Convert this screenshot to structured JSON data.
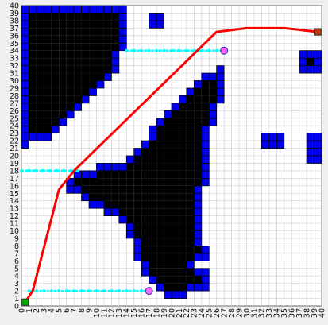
{
  "chart_data": {
    "type": "scatter",
    "title": "",
    "xlabel": "",
    "ylabel": "",
    "xlim": [
      0,
      40
    ],
    "ylim": [
      0,
      40
    ],
    "grid": true,
    "x_tick_labels": [
      "0",
      "1",
      "2",
      "3",
      "4",
      "5",
      "6",
      "7",
      "8",
      "9",
      "10",
      "11",
      "12",
      "13",
      "14",
      "15",
      "16",
      "17",
      "18",
      "19",
      "20",
      "21",
      "22",
      "23",
      "24",
      "25",
      "26",
      "27",
      "28",
      "29",
      "30",
      "31",
      "32",
      "33",
      "34",
      "35",
      "36",
      "37",
      "38",
      "39",
      "40"
    ],
    "y_tick_labels": [
      "0",
      "1",
      "2",
      "3",
      "4",
      "5",
      "6",
      "7",
      "8",
      "9",
      "10",
      "11",
      "12",
      "13",
      "14",
      "15",
      "16",
      "17",
      "18",
      "19",
      "20",
      "21",
      "22",
      "23",
      "24",
      "25",
      "26",
      "27",
      "28",
      "29",
      "30",
      "31",
      "32",
      "33",
      "34",
      "35",
      "36",
      "37",
      "38",
      "39",
      "40"
    ],
    "obstacles": [
      {
        "name": "top-left-obstacle",
        "points": [
          [
            0,
            40
          ],
          [
            14.5,
            40
          ],
          [
            14,
            36
          ],
          [
            13,
            32
          ],
          [
            11,
            29
          ],
          [
            9,
            27
          ],
          [
            6,
            24
          ],
          [
            3,
            22
          ],
          [
            0,
            21
          ]
        ]
      },
      {
        "name": "central-obstacle",
        "points": [
          [
            7,
            18
          ],
          [
            14,
            19
          ],
          [
            17,
            23
          ],
          [
            21,
            28
          ],
          [
            25,
            31
          ],
          [
            27,
            32
          ],
          [
            26.5,
            27
          ],
          [
            25,
            22
          ],
          [
            24.5,
            16
          ],
          [
            24.5,
            12
          ],
          [
            23.5,
            8
          ],
          [
            22.5,
            4
          ],
          [
            21.5,
            1
          ],
          [
            19.5,
            1
          ],
          [
            17.5,
            3
          ],
          [
            15.5,
            6
          ],
          [
            14.5,
            9
          ],
          [
            13,
            12
          ],
          [
            10,
            13
          ],
          [
            8,
            15
          ],
          [
            6,
            15
          ],
          [
            6,
            16.5
          ]
        ]
      },
      {
        "name": "small-block-top-center",
        "points": [
          [
            17.5,
            37
          ],
          [
            19.5,
            37
          ],
          [
            19.5,
            39
          ],
          [
            17.5,
            39
          ]
        ]
      },
      {
        "name": "small-block-bottom",
        "points": [
          [
            22,
            2
          ],
          [
            25,
            2
          ],
          [
            25,
            5
          ],
          [
            22,
            5
          ]
        ]
      },
      {
        "name": "right-block-upper",
        "points": [
          [
            37,
            31
          ],
          [
            40,
            31
          ],
          [
            40,
            34
          ],
          [
            37,
            34
          ]
        ]
      },
      {
        "name": "right-block-middle",
        "points": [
          [
            32,
            21
          ],
          [
            35,
            21
          ],
          [
            35,
            23
          ],
          [
            32,
            23
          ]
        ]
      },
      {
        "name": "right-block-lower",
        "points": [
          [
            38,
            19
          ],
          [
            40,
            19
          ],
          [
            40,
            23
          ],
          [
            38,
            23
          ]
        ]
      },
      {
        "name": "small-block-lower-right",
        "points": [
          [
            23,
            6
          ],
          [
            25,
            6
          ],
          [
            25,
            8
          ],
          [
            23,
            8
          ]
        ]
      }
    ],
    "start": {
      "x": 0.5,
      "y": 0.5
    },
    "goal": {
      "x": 39.5,
      "y": 36.5
    },
    "path": {
      "color": "#ff0000",
      "points": [
        [
          0.5,
          0.5
        ],
        [
          1.5,
          2
        ],
        [
          5,
          15.5
        ],
        [
          7,
          18
        ],
        [
          26,
          36.5
        ],
        [
          30,
          37
        ],
        [
          35,
          37
        ],
        [
          39.5,
          36.5
        ]
      ]
    },
    "scan_lines": [
      {
        "color": "#00ffff",
        "from": [
          1,
          2
        ],
        "to": [
          17,
          2
        ],
        "end_marker": [
          17,
          2
        ]
      },
      {
        "color": "#00ffff",
        "from": [
          0,
          18
        ],
        "to": [
          7.5,
          18
        ]
      },
      {
        "color": "#00ffff",
        "from": [
          14,
          34
        ],
        "to": [
          27,
          34
        ],
        "end_marker": [
          27,
          34
        ]
      }
    ]
  }
}
